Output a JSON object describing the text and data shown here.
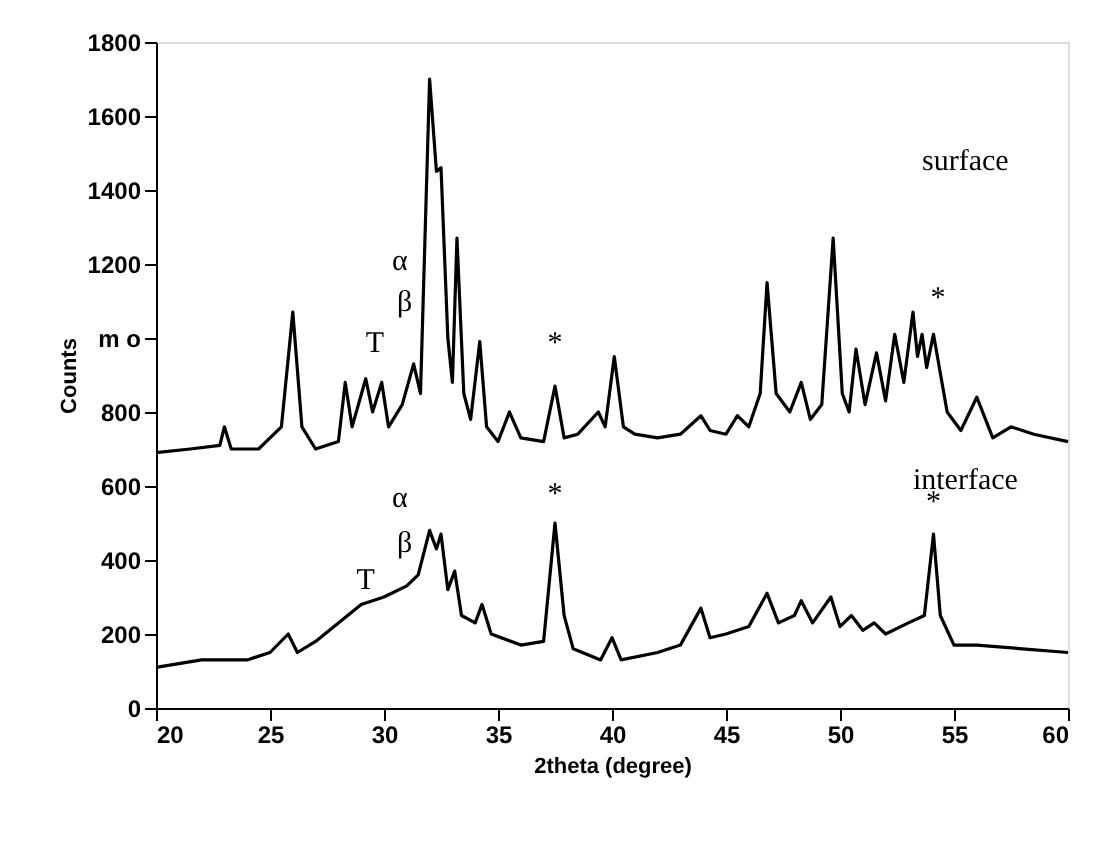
{
  "chart_data": {
    "type": "line",
    "xlabel": "2theta (degree)",
    "ylabel": "Counts",
    "xlim": [
      20,
      60
    ],
    "xticks": [
      20,
      25,
      30,
      35,
      40,
      45,
      50,
      55,
      60
    ],
    "ylim": [
      0,
      1800
    ],
    "yticks": [
      0,
      200,
      400,
      600,
      800,
      {
        "value": 1000,
        "label": "m o"
      },
      1200,
      1400,
      1600,
      1800
    ],
    "grid": false,
    "marker": "none",
    "line_style": "solid",
    "series": [
      {
        "color": "#000000",
        "x": [
          20,
          21.5,
          22.8,
          23,
          23.3,
          24.5,
          25.5,
          26,
          26.4,
          27,
          28,
          28.3,
          28.6,
          29.2,
          29.5,
          29.9,
          30.2,
          30.8,
          31.3,
          31.6,
          32,
          32.3,
          32.5,
          32.8,
          33,
          33.2,
          33.5,
          33.8,
          34.2,
          34.5,
          35,
          35.5,
          36,
          37,
          37.5,
          37.9,
          38.5,
          39.4,
          39.7,
          40.1,
          40.5,
          41,
          42,
          43,
          43.9,
          44.3,
          45,
          45.5,
          46,
          46.5,
          46.8,
          47.2,
          47.8,
          48.3,
          48.7,
          49.2,
          49.7,
          50.1,
          50.4,
          50.7,
          51.1,
          51.6,
          52,
          52.4,
          52.8,
          53.2,
          53.4,
          53.6,
          53.8,
          54.1,
          54.7,
          55.3,
          56,
          56.7,
          57.5,
          58.5,
          60
        ],
        "values": [
          690,
          700,
          710,
          760,
          700,
          700,
          760,
          1070,
          760,
          700,
          720,
          880,
          760,
          890,
          800,
          880,
          760,
          820,
          930,
          850,
          1700,
          1450,
          1460,
          1000,
          880,
          1270,
          850,
          780,
          990,
          760,
          720,
          800,
          730,
          720,
          870,
          730,
          740,
          800,
          760,
          950,
          760,
          740,
          730,
          740,
          790,
          750,
          740,
          790,
          760,
          850,
          1150,
          850,
          800,
          880,
          780,
          820,
          1270,
          850,
          800,
          970,
          820,
          960,
          830,
          1010,
          880,
          1070,
          950,
          1010,
          920,
          1010,
          800,
          750,
          840,
          730,
          760,
          740,
          720
        ]
      },
      {
        "color": "#000000",
        "x": [
          20,
          22,
          24,
          25,
          25.8,
          26.2,
          27,
          28,
          29,
          30,
          31,
          31.5,
          32,
          32.3,
          32.5,
          32.8,
          33.1,
          33.4,
          34,
          34.3,
          34.7,
          36,
          37,
          37.5,
          37.9,
          38.3,
          39.5,
          40,
          40.4,
          42,
          43,
          43.9,
          44.3,
          45,
          46,
          46.8,
          47.3,
          48,
          48.3,
          48.8,
          49.6,
          50,
          50.5,
          51,
          51.5,
          52,
          53,
          53.7,
          54.1,
          54.4,
          55,
          56,
          58,
          60
        ],
        "values": [
          110,
          130,
          130,
          150,
          200,
          150,
          180,
          230,
          280,
          300,
          330,
          360,
          480,
          430,
          470,
          320,
          370,
          250,
          230,
          280,
          200,
          170,
          180,
          500,
          250,
          160,
          130,
          190,
          130,
          150,
          170,
          270,
          190,
          200,
          220,
          310,
          230,
          250,
          290,
          230,
          300,
          220,
          250,
          210,
          230,
          200,
          230,
          250,
          470,
          250,
          170,
          170,
          160,
          150
        ]
      }
    ],
    "annotations": [
      "surface",
      "interface",
      "α",
      "β",
      "T",
      "*",
      "*",
      "α",
      "β",
      "T",
      "*",
      "*"
    ]
  }
}
